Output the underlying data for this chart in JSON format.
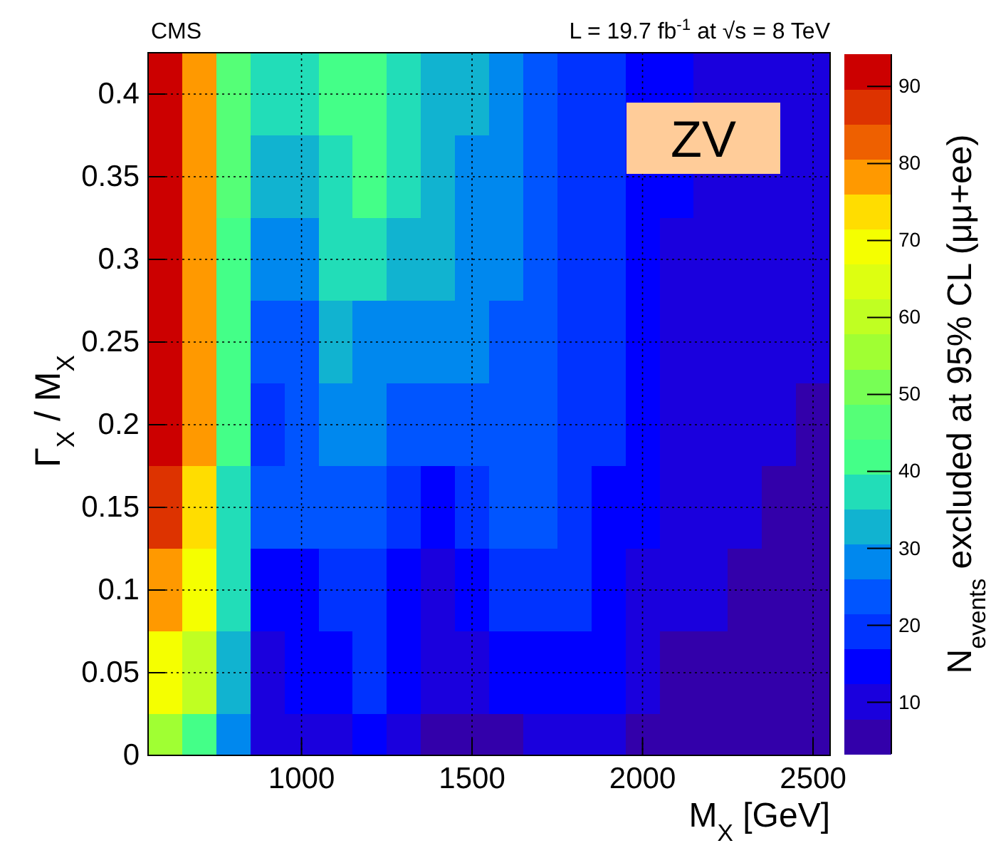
{
  "chart_data": {
    "type": "heatmap",
    "title": "CMS",
    "subtitle": "L = 19.7 fb$^{-1}$ at √s = 8 TeV",
    "xlabel": "M$_{X}$ [GeV]",
    "ylabel": "Γ$_{X}$ / M$_{X}$",
    "clabel": "N$_{events}$ excluded at 95% CL (μμ+ee)",
    "annotations": [
      "ZV"
    ],
    "x": [
      600,
      700,
      800,
      900,
      1000,
      1100,
      1200,
      1300,
      1400,
      1500,
      1600,
      1700,
      1800,
      1900,
      2000,
      2100,
      2200,
      2300,
      2400,
      2500
    ],
    "y": [
      0.4,
      0.35,
      0.3,
      0.25,
      0.2,
      0.15,
      0.1,
      0.05,
      0
    ],
    "cells": [
      [
        92,
        78,
        46,
        37,
        37,
        42,
        42,
        37,
        33,
        33,
        28,
        24,
        19,
        19,
        15,
        15,
        10,
        10,
        10,
        10
      ],
      [
        92,
        78,
        46,
        33,
        33,
        37,
        42,
        37,
        33,
        28,
        28,
        24,
        19,
        19,
        15,
        15,
        10,
        10,
        10,
        10
      ],
      [
        92,
        78,
        42,
        28,
        28,
        37,
        37,
        33,
        33,
        28,
        28,
        24,
        19,
        19,
        15,
        10,
        10,
        10,
        10,
        10
      ],
      [
        92,
        78,
        42,
        24,
        24,
        33,
        28,
        28,
        28,
        28,
        24,
        24,
        19,
        19,
        15,
        10,
        10,
        10,
        10,
        10
      ],
      [
        92,
        78,
        42,
        19,
        24,
        28,
        28,
        24,
        24,
        24,
        24,
        24,
        19,
        19,
        15,
        10,
        10,
        10,
        10,
        6
      ],
      [
        87,
        74,
        37,
        24,
        24,
        24,
        24,
        19,
        15,
        19,
        24,
        24,
        19,
        15,
        15,
        10,
        10,
        10,
        6,
        6
      ],
      [
        78,
        69,
        37,
        15,
        15,
        19,
        19,
        15,
        10,
        15,
        19,
        19,
        19,
        15,
        10,
        10,
        10,
        6,
        6,
        6
      ],
      [
        69,
        60,
        33,
        10,
        15,
        15,
        19,
        15,
        10,
        10,
        15,
        15,
        15,
        15,
        10,
        6,
        6,
        6,
        6,
        6
      ],
      [
        55,
        42,
        28,
        10,
        10,
        10,
        15,
        10,
        6,
        6,
        6,
        10,
        10,
        10,
        6,
        6,
        6,
        6,
        6,
        6
      ]
    ],
    "xlim": [
      550,
      2550
    ],
    "ylim": [
      0,
      0.425
    ],
    "xticks": [
      1000,
      1500,
      2000,
      2500
    ],
    "yticks": [
      0,
      0.05,
      0.1,
      0.15,
      0.2,
      0.25,
      0.3,
      0.35,
      0.4
    ],
    "clim": [
      3.3,
      94.2
    ],
    "cticks": [
      10,
      20,
      30,
      40,
      50,
      60,
      70,
      80,
      90
    ],
    "grid": true
  }
}
